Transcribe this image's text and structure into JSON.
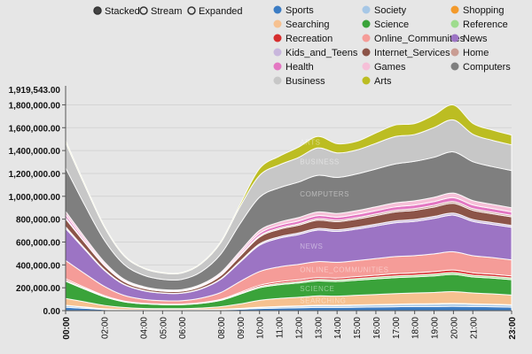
{
  "controls": {
    "modes": [
      {
        "label": "Stacked",
        "selected": true
      },
      {
        "label": "Stream",
        "selected": false
      },
      {
        "label": "Expanded",
        "selected": false
      }
    ]
  },
  "chart_data": {
    "type": "area",
    "stacked": true,
    "ylim": [
      0,
      1919543
    ],
    "y_max_label": "1,919,543.00",
    "y_ticks": [
      0,
      200000,
      400000,
      600000,
      800000,
      1000000,
      1200000,
      1400000,
      1600000,
      1800000
    ],
    "y_tick_labels": [
      "0.00",
      "200,000.00",
      "400,000.00",
      "600,000.00",
      "800,000.00",
      "1,000,000.00",
      "1,200,000.00",
      "1,400,000.00",
      "1,600,000.00",
      "1,800,000.00"
    ],
    "x": [
      0,
      1,
      2,
      3,
      4,
      5,
      6,
      7,
      8,
      9,
      10,
      11,
      12,
      13,
      14,
      15,
      16,
      17,
      18,
      19,
      20,
      21,
      22,
      23
    ],
    "x_tick_labels": {
      "0": "00:00",
      "2": "02:00",
      "4": "04:00",
      "5": "05:00",
      "6": "06:00",
      "8": "08:00",
      "9": "09:00",
      "10": "10:00",
      "11": "11:00",
      "12": "12:00",
      "13": "13:00",
      "14": "14:00",
      "15": "15:00",
      "16": "16:00",
      "17": "17:00",
      "18": "18:00",
      "19": "19:00",
      "20": "20:00",
      "21": "21:00",
      "23": "23:00"
    },
    "bold_x_ticks": [
      "00:00",
      "23:00"
    ],
    "legend_position": "top-right",
    "series": [
      {
        "name": "Sports",
        "color": "#3b7cc4",
        "values": [
          30000,
          20000,
          10000,
          6000,
          5000,
          5000,
          5000,
          6000,
          8000,
          12000,
          18000,
          22000,
          25000,
          28000,
          28000,
          30000,
          32000,
          34000,
          36000,
          36000,
          38000,
          36000,
          34000,
          30000
        ]
      },
      {
        "name": "Society",
        "color": "#a6c7e6",
        "values": [
          15000,
          10000,
          5000,
          3000,
          2000,
          2000,
          2000,
          3000,
          4000,
          6000,
          10000,
          12000,
          14000,
          16000,
          16000,
          17000,
          18000,
          19000,
          20000,
          21000,
          22000,
          20000,
          19000,
          18000
        ]
      },
      {
        "name": "Shopping",
        "color": "#f39a2b",
        "values": [
          2000,
          1500,
          1000,
          600,
          500,
          500,
          500,
          600,
          800,
          1200,
          2000,
          2500,
          2800,
          3000,
          3000,
          3200,
          3400,
          3600,
          3800,
          4000,
          4200,
          3800,
          3600,
          3200
        ]
      },
      {
        "name": "Searching",
        "color": "#f6c190",
        "values": [
          60000,
          45000,
          30000,
          18000,
          12000,
          10000,
          10000,
          14000,
          22000,
          40000,
          60000,
          70000,
          75000,
          82000,
          80000,
          84000,
          88000,
          92000,
          95000,
          98000,
          102000,
          95000,
          90000,
          85000
        ]
      },
      {
        "name": "Science",
        "color": "#3aa33a",
        "values": [
          150000,
          110000,
          75000,
          50000,
          40000,
          35000,
          35000,
          40000,
          55000,
          85000,
          110000,
          120000,
          125000,
          130000,
          128000,
          132000,
          136000,
          140000,
          140000,
          145000,
          150000,
          140000,
          138000,
          135000
        ]
      },
      {
        "name": "Reference",
        "color": "#9edc8e",
        "values": [
          10000,
          7000,
          5000,
          3000,
          2500,
          2000,
          2000,
          3000,
          4000,
          7000,
          10000,
          12000,
          13000,
          14000,
          14000,
          14500,
          15000,
          15500,
          16000,
          16500,
          17000,
          16000,
          15500,
          15000
        ]
      },
      {
        "name": "Recreation",
        "color": "#d62e2e",
        "values": [
          12000,
          9000,
          6000,
          4000,
          3000,
          3000,
          3000,
          4000,
          5000,
          9000,
          12000,
          14000,
          15000,
          16000,
          16000,
          17000,
          18000,
          19000,
          20000,
          21000,
          22000,
          20000,
          19000,
          18000
        ]
      },
      {
        "name": "Online_Communities",
        "color": "#f59c98",
        "values": [
          160000,
          120000,
          80000,
          50000,
          35000,
          30000,
          30000,
          40000,
          60000,
          95000,
          120000,
          130000,
          135000,
          140000,
          138000,
          140000,
          145000,
          150000,
          150000,
          155000,
          160000,
          150000,
          145000,
          140000
        ]
      },
      {
        "name": "News",
        "color": "#9c74c4",
        "values": [
          280000,
          210000,
          140000,
          95000,
          75000,
          65000,
          65000,
          80000,
          115000,
          170000,
          230000,
          250000,
          260000,
          275000,
          270000,
          275000,
          285000,
          295000,
          300000,
          310000,
          320000,
          300000,
          290000,
          285000
        ]
      },
      {
        "name": "Kids_and_Teens",
        "color": "#c8b6dc",
        "values": [
          15000,
          10000,
          7000,
          4000,
          3000,
          2500,
          2500,
          3500,
          5000,
          8000,
          12000,
          13000,
          14000,
          15000,
          15000,
          15500,
          16000,
          16500,
          17000,
          17500,
          18000,
          17000,
          16500,
          16000
        ]
      },
      {
        "name": "Internet_Services",
        "color": "#8c5448",
        "values": [
          70000,
          50000,
          35000,
          22000,
          17000,
          15000,
          15000,
          18000,
          28000,
          45000,
          60000,
          65000,
          68000,
          72000,
          70000,
          72000,
          75000,
          78000,
          80000,
          82000,
          85000,
          80000,
          77000,
          75000
        ]
      },
      {
        "name": "Home",
        "color": "#c99c93",
        "values": [
          10000,
          7000,
          5000,
          3000,
          2500,
          2000,
          2000,
          3000,
          4000,
          7000,
          10000,
          11000,
          12000,
          13000,
          13000,
          13500,
          14000,
          14500,
          15000,
          15500,
          16000,
          15000,
          14500,
          14000
        ]
      },
      {
        "name": "Health",
        "color": "#e377c2",
        "values": [
          25000,
          18000,
          12000,
          8000,
          6000,
          5000,
          5000,
          7000,
          10000,
          16000,
          22000,
          24000,
          25000,
          27000,
          27000,
          28000,
          29000,
          30000,
          31000,
          32000,
          34000,
          32000,
          31000,
          30000
        ]
      },
      {
        "name": "Games",
        "color": "#f6c0d8",
        "values": [
          30000,
          22000,
          15000,
          10000,
          8000,
          7000,
          7000,
          9000,
          13000,
          20000,
          26000,
          28000,
          30000,
          32000,
          32000,
          33000,
          34000,
          36000,
          37000,
          38000,
          40000,
          38000,
          37000,
          36000
        ]
      },
      {
        "name": "Computers",
        "color": "#7f7f7f",
        "values": [
          380000,
          280000,
          190000,
          130000,
          100000,
          90000,
          90000,
          110000,
          160000,
          240000,
          290000,
          300000,
          310000,
          320000,
          315000,
          320000,
          330000,
          340000,
          345000,
          350000,
          360000,
          340000,
          330000,
          325000
        ]
      },
      {
        "name": "Business",
        "color": "#c7c7c7",
        "values": [
          220000,
          170000,
          115000,
          75000,
          60000,
          55000,
          55000,
          70000,
          100000,
          150000,
          190000,
          200000,
          215000,
          240000,
          215000,
          210000,
          225000,
          240000,
          235000,
          260000,
          280000,
          240000,
          230000,
          225000
        ]
      },
      {
        "name": "Arts",
        "color": "#bcbd22",
        "values": [
          20000,
          15000,
          10000,
          7000,
          5000,
          5000,
          5000,
          7000,
          10000,
          20000,
          60000,
          75000,
          90000,
          100000,
          80000,
          75000,
          90000,
          100000,
          95000,
          110000,
          130000,
          95000,
          90000,
          85000
        ]
      }
    ]
  }
}
